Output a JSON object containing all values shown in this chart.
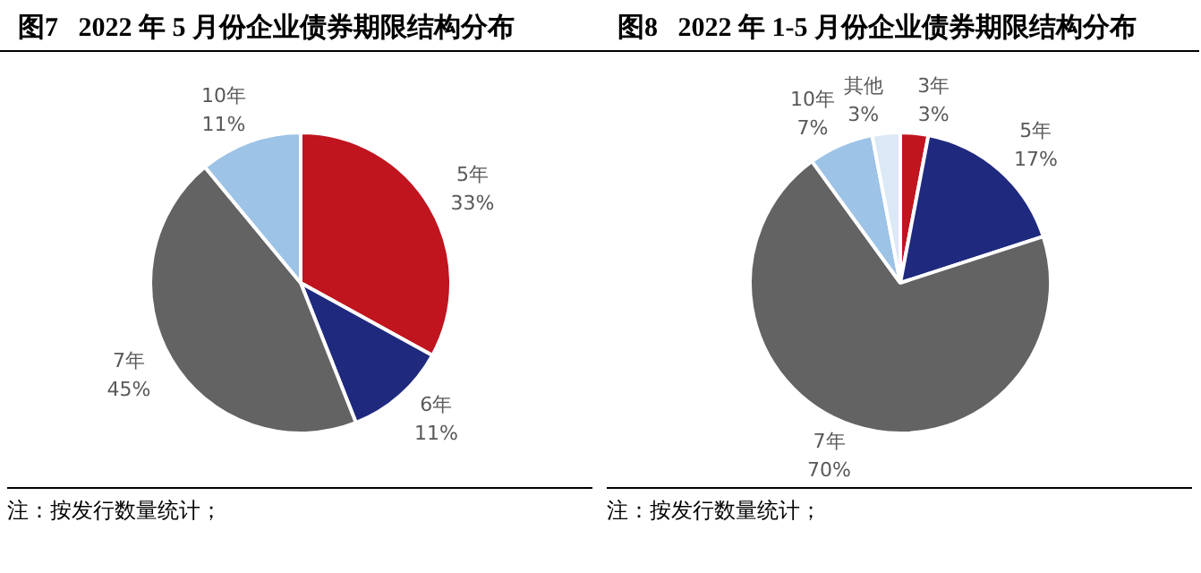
{
  "chart_data": [
    {
      "type": "pie",
      "title": "图7   2022 年 5 月份企业债券期限结构分布",
      "categories": [
        "5年",
        "6年",
        "7年",
        "10年"
      ],
      "values": [
        33,
        11,
        45,
        11
      ],
      "value_labels": [
        "33%",
        "11%",
        "45%",
        "11%"
      ],
      "colors": [
        "#c0141f",
        "#1f2a7e",
        "#636363",
        "#9dc3e6"
      ],
      "legend": false,
      "annotations": [
        "注：按发行数量统计；"
      ]
    },
    {
      "type": "pie",
      "title": "图8   2022 年 1-5 月份企业债券期限结构分布",
      "categories": [
        "3年",
        "5年",
        "7年",
        "10年",
        "其他"
      ],
      "values": [
        3,
        17,
        70,
        7,
        3
      ],
      "value_labels": [
        "3%",
        "17%",
        "70%",
        "7%",
        "3%"
      ],
      "colors": [
        "#c0141f",
        "#1f2a7e",
        "#636363",
        "#9dc3e6",
        "#dbe8f5"
      ],
      "legend": false,
      "annotations": [
        "注：按发行数量统计；"
      ]
    }
  ]
}
